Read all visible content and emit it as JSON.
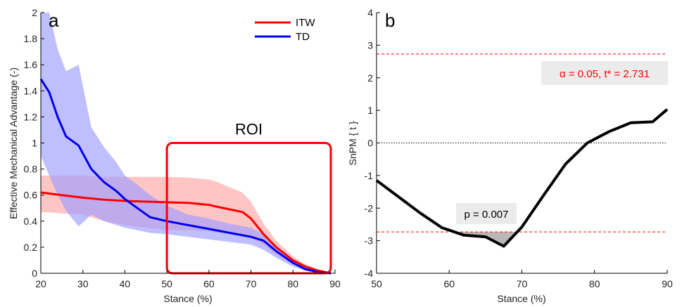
{
  "chart_data": [
    {
      "type": "line",
      "panel_label": "a",
      "xlabel": "Stance (%)",
      "ylabel": "Effective Mechanical Advantage (-)",
      "xlim": [
        20,
        90
      ],
      "ylim": [
        0,
        2
      ],
      "xticks": [
        "20",
        "30",
        "40",
        "50",
        "60",
        "70",
        "80",
        "90"
      ],
      "yticks": [
        "0",
        "0.2",
        "0.4",
        "0.6",
        "0.8",
        "1",
        "1.2",
        "1.4",
        "1.6",
        "1.8",
        "2"
      ],
      "legend_position": "top-right",
      "series": [
        {
          "name": "ITW",
          "color": "#ff0000",
          "band_color": "#ffa6a6",
          "x": [
            20,
            25,
            30,
            35,
            40,
            45,
            50,
            55,
            60,
            62,
            65,
            68,
            70,
            73,
            76,
            80,
            83,
            86,
            89
          ],
          "values": [
            0.62,
            0.6,
            0.58,
            0.565,
            0.555,
            0.55,
            0.545,
            0.54,
            0.525,
            0.51,
            0.49,
            0.47,
            0.42,
            0.3,
            0.2,
            0.1,
            0.05,
            0.02,
            0.0
          ],
          "upper": [
            0.75,
            0.75,
            0.75,
            0.74,
            0.74,
            0.74,
            0.74,
            0.735,
            0.72,
            0.7,
            0.66,
            0.62,
            0.55,
            0.38,
            0.25,
            0.13,
            0.07,
            0.03,
            0.01
          ],
          "lower": [
            0.47,
            0.46,
            0.45,
            0.4,
            0.37,
            0.35,
            0.33,
            0.33,
            0.32,
            0.31,
            0.3,
            0.29,
            0.27,
            0.22,
            0.14,
            0.07,
            0.03,
            0.01,
            0.0
          ]
        },
        {
          "name": "TD",
          "color": "#0000ee",
          "band_color": "#9d9dff",
          "x": [
            20,
            22,
            24,
            26,
            29,
            32,
            35,
            38,
            40,
            43,
            46,
            50,
            55,
            60,
            65,
            70,
            73,
            76,
            80,
            83,
            86,
            89
          ],
          "values": [
            1.49,
            1.39,
            1.2,
            1.05,
            0.98,
            0.8,
            0.7,
            0.63,
            0.57,
            0.5,
            0.43,
            0.4,
            0.37,
            0.34,
            0.31,
            0.28,
            0.25,
            0.17,
            0.08,
            0.03,
            0.01,
            0.0
          ],
          "upper": [
            2.0,
            2.0,
            1.72,
            1.55,
            1.6,
            1.12,
            0.97,
            0.85,
            0.75,
            0.68,
            0.6,
            0.52,
            0.45,
            0.42,
            0.38,
            0.35,
            0.3,
            0.2,
            0.1,
            0.05,
            0.02,
            0.01
          ],
          "lower": [
            0.9,
            0.75,
            0.6,
            0.48,
            0.36,
            0.45,
            0.4,
            0.37,
            0.35,
            0.33,
            0.31,
            0.3,
            0.28,
            0.26,
            0.24,
            0.22,
            0.18,
            0.12,
            0.05,
            0.02,
            0.01,
            0.0
          ]
        }
      ],
      "annotations": [
        {
          "text": "ROI",
          "x_range": [
            50,
            89
          ],
          "y_range": [
            0,
            1
          ],
          "color": "#ff0000"
        }
      ]
    },
    {
      "type": "line",
      "panel_label": "b",
      "xlabel": "Stance (%)",
      "ylabel": "SnPM { t }",
      "xlim": [
        50,
        90
      ],
      "ylim": [
        -4,
        4
      ],
      "xticks": [
        "50",
        "60",
        "70",
        "80",
        "90"
      ],
      "yticks": [
        "-4",
        "-3",
        "-2",
        "-1",
        "0",
        "1",
        "2",
        "3",
        "4"
      ],
      "series": [
        {
          "color": "#000000",
          "x": [
            50,
            53,
            56,
            59,
            62,
            65,
            67.5,
            70,
            73,
            76,
            79,
            82,
            85,
            88,
            90
          ],
          "values": [
            -1.15,
            -1.65,
            -2.15,
            -2.6,
            -2.83,
            -2.88,
            -3.17,
            -2.58,
            -1.6,
            -0.65,
            0.0,
            0.35,
            0.62,
            0.65,
            1.03
          ]
        }
      ],
      "threshold": 2.731,
      "threshold_color": "#ff0000",
      "annotations": [
        {
          "text": "α = 0.05,   t* = 2.731",
          "color": "#ff0000"
        },
        {
          "text": "p = 0.007",
          "color": "#000000"
        }
      ]
    }
  ]
}
